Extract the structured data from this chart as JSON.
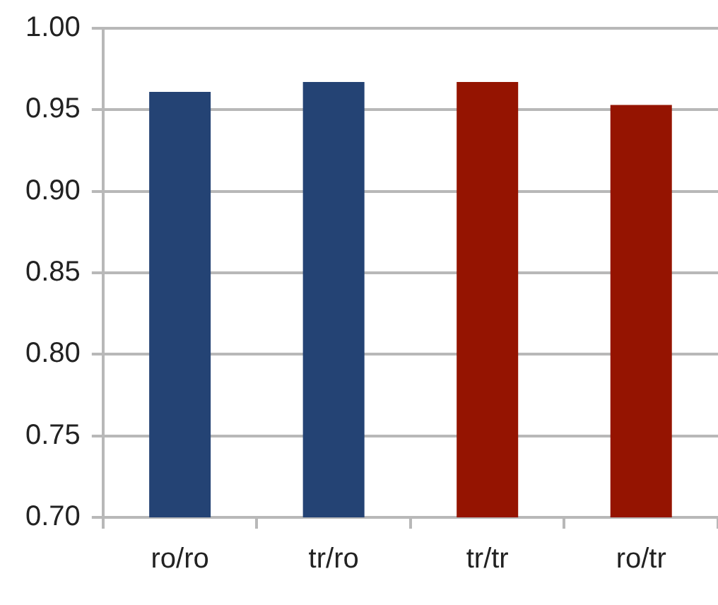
{
  "chart_data": {
    "type": "bar",
    "categories": [
      "ro/ro",
      "tr/ro",
      "tr/tr",
      "ro/tr"
    ],
    "values": [
      0.961,
      0.967,
      0.967,
      0.953
    ],
    "colors": [
      "#244374",
      "#244374",
      "#951401",
      "#951401"
    ],
    "ylim": [
      0.7,
      1.0
    ],
    "yticks": [
      {
        "value": 0.7,
        "label": "0.70"
      },
      {
        "value": 0.75,
        "label": "0.75"
      },
      {
        "value": 0.8,
        "label": "0.80"
      },
      {
        "value": 0.85,
        "label": "0.85"
      },
      {
        "value": 0.9,
        "label": "0.90"
      },
      {
        "value": 0.95,
        "label": "0.95"
      },
      {
        "value": 1.0,
        "label": "1.00"
      }
    ],
    "grid": "y",
    "legend": false
  }
}
